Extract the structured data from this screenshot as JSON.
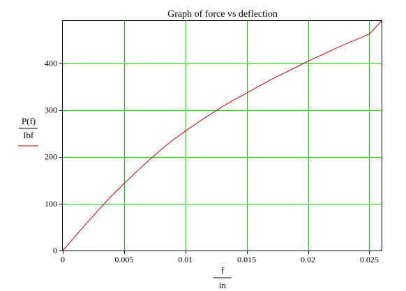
{
  "chart_data": {
    "type": "line",
    "title": "Graph of force vs deflection",
    "xlabel": {
      "numerator": "f",
      "denominator": "in"
    },
    "ylabel": {
      "numerator": "P(f)",
      "denominator": "lbf"
    },
    "xlim": [
      0,
      0.026
    ],
    "ylim": [
      0,
      490
    ],
    "x_ticks": [
      0,
      0.005,
      0.01,
      0.015,
      0.02,
      0.025
    ],
    "x_tick_labels": [
      "0",
      "0.005",
      "0.01",
      "0.015",
      "0.02",
      "0.025"
    ],
    "y_ticks": [
      0,
      100,
      200,
      300,
      400
    ],
    "y_tick_labels": [
      "0",
      "100",
      "200",
      "300",
      "400"
    ],
    "grid": true,
    "colors": {
      "series": "#cc0000",
      "grid": "#00cc00",
      "axes": "#000000"
    },
    "series": [
      {
        "x": [
          0,
          0.001,
          0.002,
          0.003,
          0.004,
          0.005,
          0.006,
          0.007,
          0.008,
          0.009,
          0.01,
          0.011,
          0.012,
          0.013,
          0.014,
          0.015,
          0.016,
          0.017,
          0.018,
          0.019,
          0.02,
          0.021,
          0.022,
          0.023,
          0.024,
          0.025,
          0.026
        ],
        "y": [
          0,
          30,
          60,
          89,
          117,
          143,
          168,
          192,
          215,
          236,
          255,
          273,
          290,
          307,
          322,
          336,
          351,
          365,
          378,
          391,
          404,
          416,
          428,
          440,
          451,
          462,
          490
        ]
      }
    ]
  }
}
